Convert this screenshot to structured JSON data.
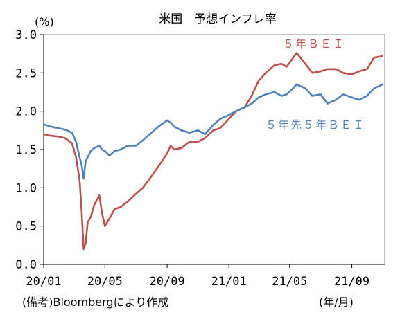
{
  "chart_data": {
    "type": "line",
    "title": "米国　予想インフレ率",
    "y_unit": "(%)",
    "x_unit": "(年/月)",
    "source": "(備考)Bloombergにより作成",
    "ylim": [
      0.0,
      3.0
    ],
    "yticks": [
      "0.0",
      "0.5",
      "1.0",
      "1.5",
      "2.0",
      "2.5",
      "3.0"
    ],
    "xlim": [
      "2020-01-01",
      "2021-11-05"
    ],
    "xticks": [
      {
        "date": "2020-01-01",
        "label": "20/01"
      },
      {
        "date": "2020-05-01",
        "label": "20/05"
      },
      {
        "date": "2020-09-01",
        "label": "20/09"
      },
      {
        "date": "2021-01-01",
        "label": "21/01"
      },
      {
        "date": "2021-05-01",
        "label": "21/05"
      },
      {
        "date": "2021-09-01",
        "label": "21/09"
      }
    ],
    "grid": false,
    "series": [
      {
        "name": "５年ＢＥＩ",
        "color": "#c0504d",
        "points": [
          [
            "2020-01-01",
            1.7
          ],
          [
            "2020-01-15",
            1.68
          ],
          [
            "2020-01-29",
            1.67
          ],
          [
            "2020-02-12",
            1.65
          ],
          [
            "2020-02-26",
            1.58
          ],
          [
            "2020-03-05",
            1.4
          ],
          [
            "2020-03-12",
            1.1
          ],
          [
            "2020-03-16",
            0.7
          ],
          [
            "2020-03-20",
            0.2
          ],
          [
            "2020-03-24",
            0.28
          ],
          [
            "2020-03-28",
            0.55
          ],
          [
            "2020-04-03",
            0.62
          ],
          [
            "2020-04-10",
            0.78
          ],
          [
            "2020-04-20",
            0.9
          ],
          [
            "2020-04-25",
            0.68
          ],
          [
            "2020-05-01",
            0.5
          ],
          [
            "2020-05-10",
            0.6
          ],
          [
            "2020-05-20",
            0.72
          ],
          [
            "2020-06-01",
            0.75
          ],
          [
            "2020-06-15",
            0.82
          ],
          [
            "2020-07-01",
            0.92
          ],
          [
            "2020-07-15",
            1.0
          ],
          [
            "2020-08-01",
            1.15
          ],
          [
            "2020-08-15",
            1.28
          ],
          [
            "2020-09-01",
            1.45
          ],
          [
            "2020-09-08",
            1.55
          ],
          [
            "2020-09-15",
            1.5
          ],
          [
            "2020-09-29",
            1.52
          ],
          [
            "2020-10-15",
            1.6
          ],
          [
            "2020-11-01",
            1.6
          ],
          [
            "2020-11-15",
            1.65
          ],
          [
            "2020-12-01",
            1.75
          ],
          [
            "2020-12-15",
            1.78
          ],
          [
            "2021-01-01",
            1.9
          ],
          [
            "2021-01-15",
            2.0
          ],
          [
            "2021-02-01",
            2.05
          ],
          [
            "2021-02-15",
            2.2
          ],
          [
            "2021-03-01",
            2.4
          ],
          [
            "2021-03-15",
            2.5
          ],
          [
            "2021-04-01",
            2.6
          ],
          [
            "2021-04-15",
            2.62
          ],
          [
            "2021-04-25",
            2.58
          ],
          [
            "2021-05-08",
            2.7
          ],
          [
            "2021-05-15",
            2.76
          ],
          [
            "2021-06-01",
            2.62
          ],
          [
            "2021-06-15",
            2.5
          ],
          [
            "2021-07-01",
            2.52
          ],
          [
            "2021-07-15",
            2.55
          ],
          [
            "2021-08-01",
            2.55
          ],
          [
            "2021-08-15",
            2.5
          ],
          [
            "2021-09-01",
            2.48
          ],
          [
            "2021-09-15",
            2.52
          ],
          [
            "2021-10-01",
            2.55
          ],
          [
            "2021-10-15",
            2.7
          ],
          [
            "2021-11-01",
            2.72
          ]
        ]
      },
      {
        "name": "５年先５年ＢＥＩ",
        "color": "#4f81bd",
        "points": [
          [
            "2020-01-01",
            1.83
          ],
          [
            "2020-01-15",
            1.8
          ],
          [
            "2020-01-29",
            1.78
          ],
          [
            "2020-02-12",
            1.76
          ],
          [
            "2020-02-26",
            1.72
          ],
          [
            "2020-03-05",
            1.6
          ],
          [
            "2020-03-12",
            1.4
          ],
          [
            "2020-03-16",
            1.3
          ],
          [
            "2020-03-20",
            1.12
          ],
          [
            "2020-03-24",
            1.35
          ],
          [
            "2020-03-28",
            1.4
          ],
          [
            "2020-04-03",
            1.48
          ],
          [
            "2020-04-10",
            1.52
          ],
          [
            "2020-04-20",
            1.55
          ],
          [
            "2020-04-25",
            1.5
          ],
          [
            "2020-05-01",
            1.48
          ],
          [
            "2020-05-10",
            1.42
          ],
          [
            "2020-05-20",
            1.48
          ],
          [
            "2020-06-01",
            1.5
          ],
          [
            "2020-06-15",
            1.55
          ],
          [
            "2020-07-01",
            1.55
          ],
          [
            "2020-07-15",
            1.62
          ],
          [
            "2020-08-01",
            1.72
          ],
          [
            "2020-08-15",
            1.8
          ],
          [
            "2020-09-01",
            1.88
          ],
          [
            "2020-09-08",
            1.85
          ],
          [
            "2020-09-15",
            1.8
          ],
          [
            "2020-09-29",
            1.75
          ],
          [
            "2020-10-15",
            1.72
          ],
          [
            "2020-11-01",
            1.75
          ],
          [
            "2020-11-15",
            1.7
          ],
          [
            "2020-12-01",
            1.82
          ],
          [
            "2020-12-15",
            1.9
          ],
          [
            "2021-01-01",
            1.95
          ],
          [
            "2021-01-15",
            2.0
          ],
          [
            "2021-02-01",
            2.05
          ],
          [
            "2021-02-15",
            2.1
          ],
          [
            "2021-03-01",
            2.18
          ],
          [
            "2021-03-15",
            2.22
          ],
          [
            "2021-04-01",
            2.25
          ],
          [
            "2021-04-15",
            2.2
          ],
          [
            "2021-04-25",
            2.22
          ],
          [
            "2021-05-08",
            2.3
          ],
          [
            "2021-05-15",
            2.35
          ],
          [
            "2021-06-01",
            2.3
          ],
          [
            "2021-06-15",
            2.2
          ],
          [
            "2021-07-01",
            2.22
          ],
          [
            "2021-07-15",
            2.1
          ],
          [
            "2021-08-01",
            2.15
          ],
          [
            "2021-08-15",
            2.22
          ],
          [
            "2021-09-01",
            2.18
          ],
          [
            "2021-09-15",
            2.15
          ],
          [
            "2021-10-01",
            2.2
          ],
          [
            "2021-10-15",
            2.3
          ],
          [
            "2021-11-01",
            2.35
          ]
        ]
      }
    ]
  }
}
